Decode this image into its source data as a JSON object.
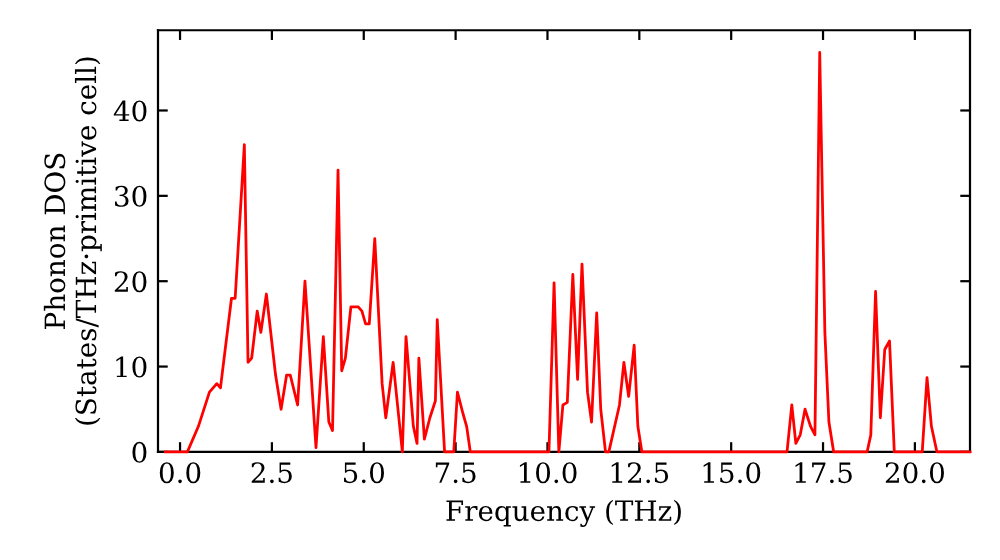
{
  "chart_data": {
    "type": "line",
    "xlabel": "Frequency (THz)",
    "ylabel": "Phonon DOS\n(States/THz·primitive cell)",
    "xlim": [
      -0.6,
      21.5
    ],
    "ylim": [
      0,
      49.4
    ],
    "xticks": [
      {
        "value": 0,
        "label": "0.0"
      },
      {
        "value": 2.5,
        "label": "2.5"
      },
      {
        "value": 5,
        "label": "5.0"
      },
      {
        "value": 7.5,
        "label": "7.5"
      },
      {
        "value": 10,
        "label": "10.0"
      },
      {
        "value": 12.5,
        "label": "12.5"
      },
      {
        "value": 15,
        "label": "15.0"
      },
      {
        "value": 17.5,
        "label": "17.5"
      },
      {
        "value": 20,
        "label": "20.0"
      }
    ],
    "yticks": [
      0,
      10,
      20,
      30,
      40
    ],
    "grid": false,
    "marker": "none",
    "line_style": "solid",
    "series": [
      {
        "color": "#ff0000",
        "x": [
          -0.4,
          0.2,
          0.5,
          0.8,
          1.0,
          1.1,
          1.4,
          1.5,
          1.75,
          1.85,
          1.95,
          2.1,
          2.2,
          2.35,
          2.6,
          2.75,
          2.9,
          3.0,
          3.2,
          3.4,
          3.7,
          3.9,
          4.05,
          4.15,
          4.3,
          4.4,
          4.5,
          4.65,
          4.85,
          4.95,
          5.05,
          5.15,
          5.3,
          5.5,
          5.6,
          5.8,
          6.05,
          6.15,
          6.35,
          6.45,
          6.5,
          6.65,
          6.8,
          6.95,
          7.0,
          7.2,
          7.45,
          7.55,
          7.7,
          7.8,
          7.9,
          10.04,
          10.18,
          10.31,
          10.42,
          10.54,
          10.69,
          10.82,
          10.94,
          11.09,
          11.2,
          11.34,
          11.45,
          11.58,
          11.67,
          11.96,
          12.08,
          12.21,
          12.36,
          12.46,
          12.57,
          16.52,
          16.65,
          16.76,
          16.88,
          17.01,
          17.16,
          17.28,
          17.41,
          17.55,
          17.66,
          17.79,
          18.7,
          18.8,
          18.93,
          19.06,
          19.18,
          19.31,
          19.44,
          20.2,
          20.33,
          20.45,
          20.6,
          21.5
        ],
        "values": [
          0,
          0,
          3,
          7,
          8,
          7.5,
          18,
          18,
          36,
          10.5,
          11,
          16.5,
          14,
          18.5,
          9,
          5,
          9,
          9,
          5.5,
          20,
          0.5,
          13.5,
          3.5,
          2.5,
          33,
          9.5,
          11,
          17,
          17,
          16.5,
          15,
          15,
          25,
          8,
          4,
          10.5,
          0,
          13.5,
          3,
          1,
          11,
          1.5,
          4,
          6,
          15.5,
          0,
          0,
          7,
          4.5,
          3,
          0,
          0,
          19.8,
          0,
          5.5,
          5.8,
          20.8,
          8.5,
          22,
          7,
          3.5,
          16.3,
          5,
          0,
          0,
          5.5,
          10.5,
          6.5,
          12.5,
          3,
          0,
          0,
          5.5,
          1,
          2,
          5,
          3,
          2,
          46.8,
          14,
          3.5,
          0,
          0,
          2,
          18.8,
          4,
          12,
          13,
          0,
          0,
          8.7,
          3,
          0,
          0
        ]
      }
    ]
  }
}
